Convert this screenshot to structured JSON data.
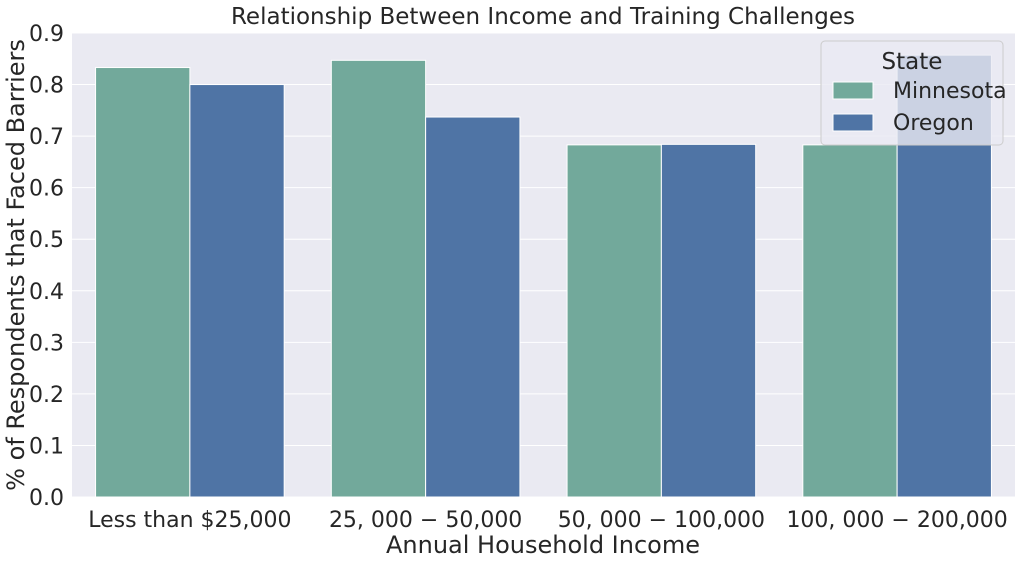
{
  "chart_data": {
    "type": "bar",
    "title": "Relationship Between Income and Training Challenges",
    "xlabel": "Annual Household Income",
    "ylabel": "% of Respondents that Faced Barriers",
    "categories": [
      "Less than $25,000",
      "25, 000 − 50,000",
      "50, 000 − 100,000",
      "100, 000 − 200,000"
    ],
    "series": [
      {
        "name": "Minnesota",
        "color": "#72a99b",
        "values": [
          0.833,
          0.847,
          0.683,
          0.683
        ]
      },
      {
        "name": "Oregon",
        "color": "#4f74a5",
        "values": [
          0.8,
          0.737,
          0.684,
          0.857
        ]
      }
    ],
    "ylim": [
      0,
      0.9
    ],
    "yticks": [
      "0.0",
      "0.1",
      "0.2",
      "0.3",
      "0.4",
      "0.5",
      "0.6",
      "0.7",
      "0.8",
      "0.9"
    ],
    "grid": true,
    "background": "#eaeaf2",
    "legend": {
      "title": "State",
      "placement": "top-right"
    }
  }
}
